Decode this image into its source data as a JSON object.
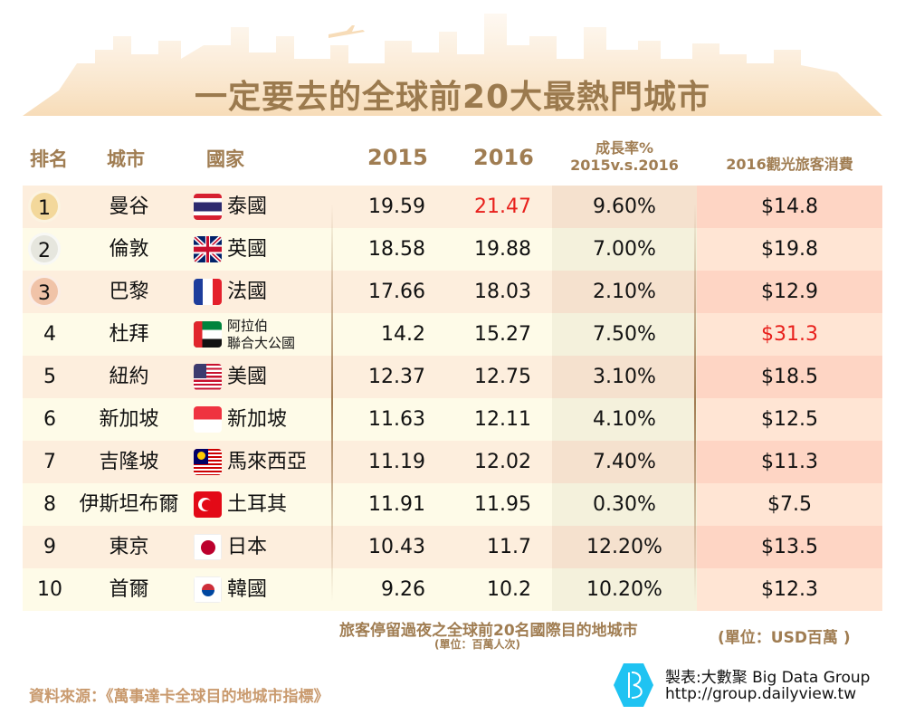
{
  "title": "一定要去的全球前20大最熱門城市",
  "headers": {
    "rank": "排名",
    "city": "城市",
    "country": "國家",
    "y2015": "2015",
    "y2016": "2016",
    "growth_line1": "成長率%",
    "growth_line2": "2015v.s.2016",
    "spend": "2016觀光旅客消費"
  },
  "colors": {
    "accent": "#a07d52",
    "highlight": "#e8201c",
    "gold": "#f3d89b",
    "silver": "#e6e6de",
    "bronze": "#f0c3a8"
  },
  "rows": [
    {
      "rank": "1",
      "city": "曼谷",
      "country": "泰國",
      "flag": "thailand-flag",
      "v2015": "19.59",
      "v2016": "21.47",
      "growth": "9.60%",
      "spend": "$14.8"
    },
    {
      "rank": "2",
      "city": "倫敦",
      "country": "英國",
      "flag": "uk-flag",
      "v2015": "18.58",
      "v2016": "19.88",
      "growth": "7.00%",
      "spend": "$19.8"
    },
    {
      "rank": "3",
      "city": "巴黎",
      "country": "法國",
      "flag": "france-flag",
      "v2015": "17.66",
      "v2016": "18.03",
      "growth": "2.10%",
      "spend": "$12.9"
    },
    {
      "rank": "4",
      "city": "杜拜",
      "country": "阿拉伯\n聯合大公國",
      "country_line1": "阿拉伯",
      "country_line2": "聯合大公國",
      "flag": "uae-flag",
      "v2015": "14.2",
      "v2016": "15.27",
      "growth": "7.50%",
      "spend": "$31.3"
    },
    {
      "rank": "5",
      "city": "紐約",
      "country": "美國",
      "flag": "usa-flag",
      "v2015": "12.37",
      "v2016": "12.75",
      "growth": "3.10%",
      "spend": "$18.5"
    },
    {
      "rank": "6",
      "city": "新加坡",
      "country": "新加坡",
      "flag": "singapore-flag",
      "v2015": "11.63",
      "v2016": "12.11",
      "growth": "4.10%",
      "spend": "$12.5"
    },
    {
      "rank": "7",
      "city": "吉隆坡",
      "country": "馬來西亞",
      "flag": "malaysia-flag",
      "v2015": "11.19",
      "v2016": "12.02",
      "growth": "7.40%",
      "spend": "$11.3"
    },
    {
      "rank": "8",
      "city": "伊斯坦布爾",
      "country": "土耳其",
      "flag": "turkey-flag",
      "v2015": "11.91",
      "v2016": "11.95",
      "growth": "0.30%",
      "spend": "$7.5"
    },
    {
      "rank": "9",
      "city": "東京",
      "country": "日本",
      "flag": "japan-flag",
      "v2015": "10.43",
      "v2016": "11.7",
      "growth": "12.20%",
      "spend": "$13.5"
    },
    {
      "rank": "10",
      "city": "首爾",
      "country": "韓國",
      "flag": "korea-flag",
      "v2015": "9.26",
      "v2016": "10.2",
      "growth": "10.20%",
      "spend": "$12.3"
    }
  ],
  "notes": {
    "caption": "旅客停留過夜之全球前20名國際目的地城市",
    "caption_unit": "(單位：百萬人次)",
    "spend_unit": "(單位：USD百萬 )",
    "source": "資料來源：《萬事達卡全球目的地城市指標》",
    "credit": "製表:大數聚 Big Data Group",
    "url": "http://group.dailyview.tw"
  }
}
